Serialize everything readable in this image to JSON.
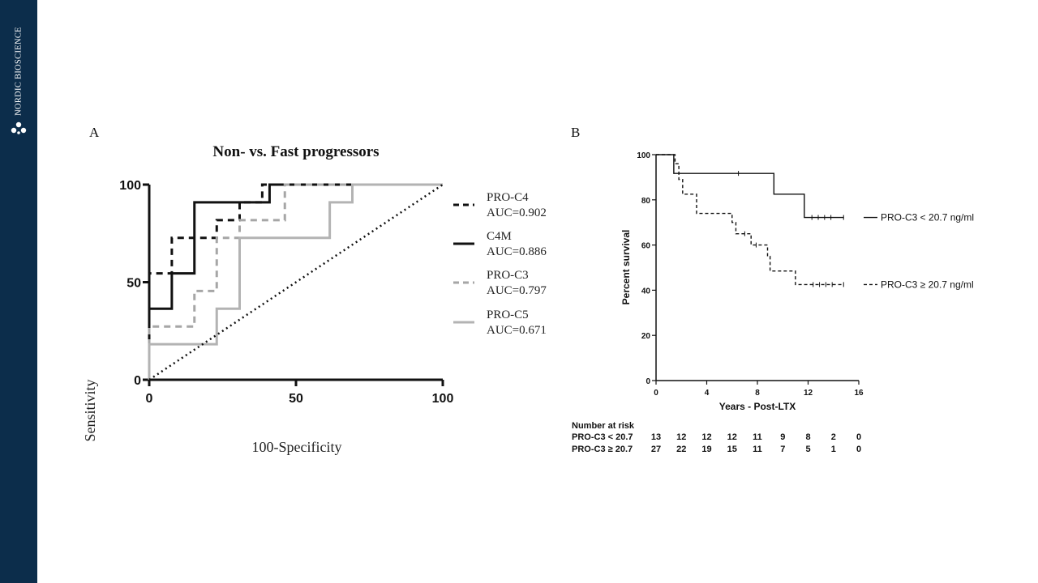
{
  "brand": {
    "name": "NORDIC BIOSCIENCE",
    "logo_icon": "molecule-logo-icon"
  },
  "colors": {
    "sidebar": "#0c2d4b",
    "black": "#111111",
    "gray_dashed": "#a6a6a6",
    "gray_solid": "#b3b3b3"
  },
  "chart_data": [
    {
      "panel_label": "A",
      "type": "line",
      "title": "Non- vs. Fast progressors",
      "xlabel": "100-Specificity",
      "ylabel": "Sensitivity",
      "xlim": [
        0,
        100
      ],
      "ylim": [
        0,
        100
      ],
      "xticks": [
        0,
        50,
        100
      ],
      "yticks": [
        0,
        50,
        100
      ],
      "legend_position": "right",
      "series": [
        {
          "name": "PRO-C4",
          "auc": "AUC=0.902",
          "style": "dashed",
          "color": "black",
          "x": [
            0,
            0,
            0,
            7.7,
            7.7,
            23,
            23,
            30.8,
            30.8,
            38.5,
            38.5,
            100
          ],
          "y": [
            0,
            54.5,
            54.5,
            54.5,
            72.7,
            72.7,
            81.8,
            81.8,
            90.9,
            90.9,
            100,
            100
          ]
        },
        {
          "name": "C4M",
          "auc": "AUC=0.886",
          "style": "solid",
          "color": "black",
          "x": [
            0,
            0,
            7.7,
            7.7,
            15.4,
            15.4,
            38.5,
            38.5,
            41,
            41,
            100
          ],
          "y": [
            0,
            36.4,
            36.4,
            54.5,
            54.5,
            90.9,
            90.9,
            90.9,
            90.9,
            100,
            100
          ]
        },
        {
          "name": "PRO-C3",
          "auc": "AUC=0.797",
          "style": "dashed",
          "color": "gray",
          "x": [
            0,
            0,
            15.4,
            15.4,
            23,
            23,
            30.8,
            30.8,
            46.2,
            46.2,
            100
          ],
          "y": [
            0,
            27.3,
            27.3,
            45.5,
            45.5,
            72.7,
            72.7,
            81.8,
            81.8,
            100,
            100
          ]
        },
        {
          "name": "PRO-C5",
          "auc": "AUC=0.671",
          "style": "solid",
          "color": "gray",
          "x": [
            0,
            0,
            23,
            23,
            30.8,
            30.8,
            61.5,
            61.5,
            69.2,
            69.2,
            100
          ],
          "y": [
            0,
            18.2,
            18.2,
            36.4,
            36.4,
            72.7,
            72.7,
            90.9,
            90.9,
            100,
            100
          ]
        },
        {
          "name": "",
          "auc": "",
          "style": "dotted",
          "color": "black",
          "x": [
            0,
            100
          ],
          "y": [
            0,
            100
          ]
        }
      ]
    },
    {
      "panel_label": "B",
      "type": "line",
      "title": "",
      "xlabel": "Years - Post-LTX",
      "ylabel": "Percent survival",
      "xlim": [
        0,
        16
      ],
      "ylim": [
        0,
        100
      ],
      "xticks": [
        0,
        4,
        8,
        12,
        16
      ],
      "yticks": [
        0,
        20,
        40,
        60,
        80,
        100
      ],
      "series": [
        {
          "name": "PRO-C3 < 20.7 ng/ml",
          "style": "solid",
          "x": [
            0,
            1.4,
            1.4,
            9.3,
            9.3,
            11.7,
            11.7,
            14.8
          ],
          "y": [
            100,
            100,
            91.7,
            91.7,
            82.5,
            82.5,
            72.2,
            72.2
          ],
          "censor_x": [
            6.5,
            12.3,
            12.8,
            13.3,
            13.8,
            14.8
          ]
        },
        {
          "name": "PRO-C3 ≥ 20.7 ng/ml",
          "style": "dashed",
          "x": [
            0,
            1.5,
            1.5,
            1.8,
            1.8,
            2.1,
            2.1,
            3.2,
            3.2,
            6,
            6,
            6.3,
            6.3,
            7.5,
            7.5,
            8.8,
            8.8,
            9,
            9,
            11,
            11,
            14.8
          ],
          "y": [
            100,
            100,
            96,
            96,
            89,
            89,
            82.5,
            82.5,
            74,
            74,
            70,
            70,
            65,
            65,
            60,
            60,
            55,
            55,
            48.5,
            48.5,
            42.5,
            42.5
          ],
          "censor_x": [
            7,
            7.9,
            12.4,
            12.9,
            13.4,
            13.9,
            14.8
          ]
        }
      ],
      "risk_table": {
        "title": "Number at risk",
        "times": [
          0,
          2,
          4,
          6,
          8,
          10,
          12,
          14,
          16
        ],
        "rows": [
          {
            "label": "PRO-C3 < 20.7",
            "values": [
              "13",
              "12",
              "12",
              "12",
              "11",
              "9",
              "8",
              "2",
              "0"
            ]
          },
          {
            "label": "PRO-C3 ≥ 20.7",
            "values": [
              "27",
              "22",
              "19",
              "15",
              "11",
              "7",
              "5",
              "1",
              "0"
            ]
          }
        ]
      }
    }
  ]
}
